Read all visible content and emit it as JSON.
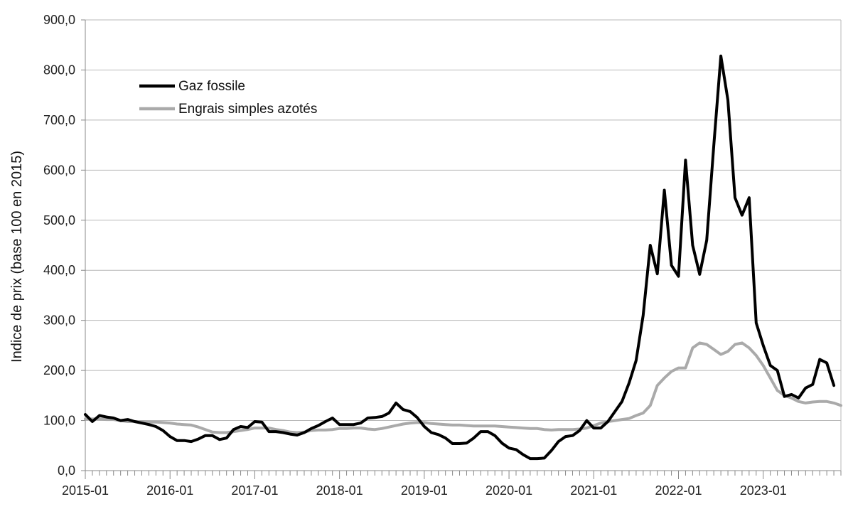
{
  "chart_data": {
    "type": "line",
    "title": "",
    "xlabel": "",
    "ylabel": "Indice de prix (base 100 en 2015)",
    "ylim": [
      0,
      900
    ],
    "yticks": [
      "0,0",
      "100,0",
      "200,0",
      "300,0",
      "400,0",
      "500,0",
      "600,0",
      "700,0",
      "800,0",
      "900,0"
    ],
    "xlim": [
      "2015-01",
      "2023-12"
    ],
    "xticks": [
      "2015-01",
      "2016-01",
      "2017-01",
      "2018-01",
      "2019-01",
      "2020-01",
      "2021-01",
      "2022-01",
      "2023-01"
    ],
    "grid": "horizontal",
    "legend_position": "top-left",
    "series": [
      {
        "name": "Gaz fossile",
        "color": "#000000",
        "values": [
          112,
          98,
          110,
          107,
          105,
          100,
          102,
          98,
          95,
          92,
          88,
          80,
          68,
          60,
          60,
          58,
          63,
          70,
          70,
          62,
          65,
          82,
          88,
          86,
          98,
          97,
          78,
          78,
          76,
          73,
          71,
          76,
          84,
          90,
          98,
          105,
          92,
          92,
          92,
          95,
          105,
          106,
          108,
          115,
          135,
          122,
          118,
          106,
          88,
          76,
          72,
          65,
          54,
          54,
          55,
          65,
          78,
          78,
          70,
          55,
          45,
          42,
          32,
          24,
          24,
          25,
          40,
          58,
          68,
          70,
          80,
          100,
          85,
          85,
          98,
          118,
          138,
          175,
          220,
          310,
          450,
          393,
          560,
          410,
          388,
          620,
          450,
          392,
          460,
          650,
          828,
          740,
          545,
          510,
          545,
          295,
          250,
          210,
          200,
          148,
          152,
          145,
          165,
          172,
          222,
          215,
          170
        ]
      },
      {
        "name": "Engrais simples azotés",
        "color": "#aaaaaa",
        "values": [
          103,
          103,
          103,
          102,
          102,
          100,
          98,
          98,
          98,
          97,
          97,
          96,
          95,
          93,
          92,
          91,
          87,
          82,
          77,
          76,
          76,
          78,
          80,
          82,
          85,
          85,
          85,
          82,
          80,
          77,
          76,
          77,
          80,
          81,
          81,
          82,
          84,
          84,
          85,
          85,
          83,
          82,
          84,
          87,
          90,
          93,
          95,
          96,
          96,
          94,
          93,
          92,
          91,
          91,
          90,
          89,
          89,
          89,
          89,
          88,
          87,
          86,
          85,
          84,
          84,
          82,
          81,
          82,
          82,
          82,
          83,
          85,
          90,
          95,
          98,
          100,
          102,
          104,
          110,
          115,
          130,
          170,
          185,
          198,
          205,
          205,
          245,
          255,
          252,
          242,
          232,
          238,
          252,
          255,
          245,
          230,
          210,
          185,
          160,
          150,
          145,
          138,
          135,
          137,
          138,
          138,
          135,
          130
        ]
      }
    ]
  }
}
